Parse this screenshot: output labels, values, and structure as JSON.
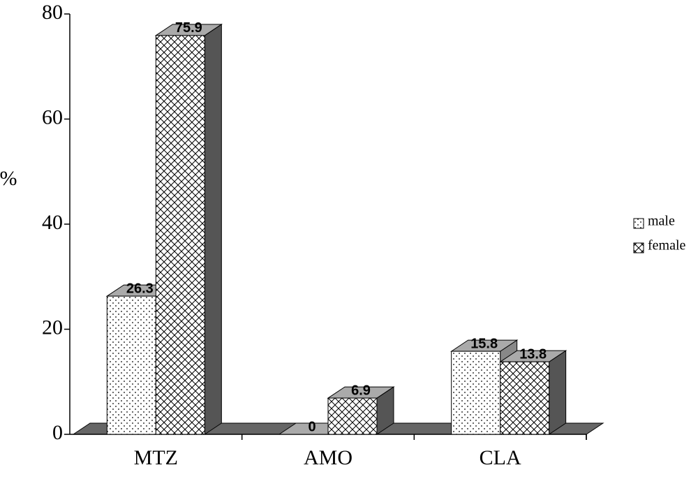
{
  "chart_data": {
    "type": "bar3d",
    "y_label": "%",
    "categories": [
      "MTZ",
      "AMO",
      "CLA"
    ],
    "series": [
      {
        "name": "male",
        "color": "#ffffff",
        "pattern": "dots",
        "values": [
          26.3,
          0,
          15.8
        ]
      },
      {
        "name": "female",
        "color": "#ffffff",
        "pattern": "crosshatch",
        "values": [
          75.9,
          6.9,
          13.8
        ]
      }
    ],
    "ylim": [
      0,
      80
    ],
    "yticks": [
      0,
      20,
      40,
      60,
      80
    ]
  }
}
